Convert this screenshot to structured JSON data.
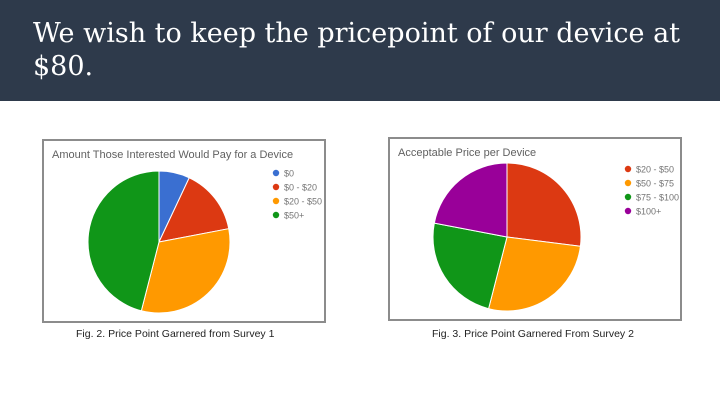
{
  "slide": {
    "title": "We wish to keep the pricepoint of our device at $80."
  },
  "captions": {
    "fig2": "Fig. 2. Price Point Garnered from Survey 1",
    "fig3": "Fig. 3. Price Point Garnered From Survey 2"
  },
  "colors": {
    "title_bar": "#2e3a4b",
    "blue": "#3a6fd1",
    "red": "#dc3912",
    "orange": "#ff9900",
    "green": "#109618",
    "purple": "#990099"
  },
  "chart_data": [
    {
      "type": "pie",
      "title": "Amount Those Interested Would Pay for a Device",
      "legend_position": "right",
      "slices": [
        {
          "label": "$0",
          "value": 7,
          "color": "#3a6fd1"
        },
        {
          "label": "$0 - $20",
          "value": 15,
          "color": "#dc3912"
        },
        {
          "label": "$20 - $50",
          "value": 32,
          "color": "#ff9900"
        },
        {
          "label": "$50+",
          "value": 46,
          "color": "#109618"
        }
      ]
    },
    {
      "type": "pie",
      "title": "Acceptable Price per Device",
      "legend_position": "right",
      "slices": [
        {
          "label": "$20 - $50",
          "value": 27,
          "color": "#dc3912"
        },
        {
          "label": "$50 - $75",
          "value": 27,
          "color": "#ff9900"
        },
        {
          "label": "$75 - $100",
          "value": 24,
          "color": "#109618"
        },
        {
          "label": "$100+",
          "value": 22,
          "color": "#990099"
        }
      ]
    }
  ]
}
